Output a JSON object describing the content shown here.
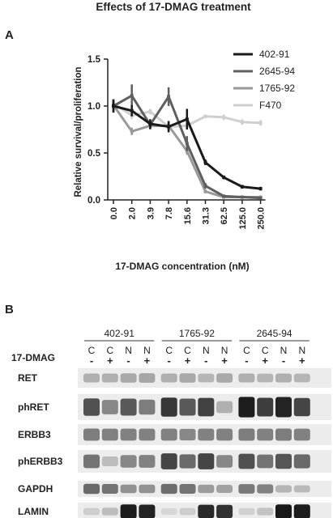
{
  "figure": {
    "title": "Effects of 17-DMAG treatment",
    "panel_a_label": "A",
    "panel_b_label": "B"
  },
  "chart_data": {
    "type": "line",
    "title": "Effects of 17-DMAG treatment",
    "xlabel": "17-DMAG concentration  (nM)",
    "ylabel": "Relative survival/proliferation",
    "categories": [
      "0.0",
      "2.0",
      "3.9",
      "7.8",
      "15.6",
      "31.3",
      "62.5",
      "125.0",
      "250.0"
    ],
    "yticks": [
      "0.0",
      "0.5",
      "1.0",
      "1.5"
    ],
    "ylim": [
      0,
      1.5
    ],
    "legend_position": "top-right",
    "series": [
      {
        "name": "402-91",
        "color": "#1a1a1a",
        "values": [
          1.0,
          0.95,
          0.81,
          0.78,
          0.86,
          0.4,
          0.24,
          0.14,
          0.12
        ],
        "errors": [
          0.07,
          0.06,
          0.05,
          0.06,
          0.11,
          0.03,
          0.02,
          0.02,
          0.02
        ]
      },
      {
        "name": "2645-94",
        "color": "#5f5f5f",
        "values": [
          1.0,
          1.11,
          0.8,
          1.1,
          0.6,
          0.15,
          0.04,
          0.03,
          0.02
        ],
        "errors": [
          0.07,
          0.12,
          0.05,
          0.1,
          0.08,
          0.03,
          0.01,
          0.01,
          0.01
        ]
      },
      {
        "name": "1765-92",
        "color": "#999999",
        "values": [
          1.01,
          0.73,
          0.79,
          0.79,
          0.52,
          0.09,
          0.03,
          0.03,
          0.03
        ],
        "errors": [
          0.05,
          0.04,
          0.04,
          0.05,
          0.04,
          0.02,
          0.01,
          0.01,
          0.01
        ]
      },
      {
        "name": "F470",
        "color": "#cfcfcf",
        "values": [
          1.03,
          0.9,
          0.94,
          0.78,
          0.79,
          0.89,
          0.88,
          0.83,
          0.82
        ],
        "errors": [
          0.05,
          0.04,
          0.03,
          0.04,
          0.04,
          0.02,
          0.03,
          0.03,
          0.03
        ]
      }
    ]
  },
  "blot": {
    "groups": [
      "402-91",
      "1765-92",
      "2645-94"
    ],
    "lane_letters": [
      "C",
      "C",
      "N",
      "N",
      "C",
      "C",
      "N",
      "N",
      "C",
      "C",
      "N",
      "N"
    ],
    "treatment_label": "17-DMAG",
    "treatment_signs": [
      "-",
      "+",
      "-",
      "+",
      "-",
      "+",
      "-",
      "+",
      "-",
      "+",
      "-",
      "+"
    ],
    "rows": [
      {
        "label": "RET",
        "intensities": [
          0.25,
          0.25,
          0.28,
          0.3,
          0.25,
          0.28,
          0.22,
          0.28,
          0.25,
          0.22,
          0.25,
          0.22
        ]
      },
      {
        "label": "phRET",
        "intensities": [
          0.72,
          0.45,
          0.68,
          0.5,
          0.85,
          0.68,
          0.8,
          0.25,
          0.98,
          0.82,
          0.95,
          0.78
        ]
      },
      {
        "label": "ERBB3",
        "intensities": [
          0.5,
          0.48,
          0.48,
          0.48,
          0.48,
          0.45,
          0.48,
          0.48,
          0.5,
          0.48,
          0.5,
          0.48
        ]
      },
      {
        "label": "phERBB3",
        "intensities": [
          0.55,
          0.18,
          0.45,
          0.48,
          0.78,
          0.6,
          0.78,
          0.45,
          0.72,
          0.55,
          0.7,
          0.6
        ]
      },
      {
        "label": "GAPDH",
        "intensities": [
          0.6,
          0.55,
          0.4,
          0.4,
          0.58,
          0.55,
          0.35,
          0.32,
          0.52,
          0.48,
          0.22,
          0.2
        ]
      },
      {
        "label": "LAMIN",
        "intensities": [
          0.1,
          0.18,
          0.98,
          0.95,
          0.05,
          0.1,
          0.92,
          0.88,
          0.08,
          0.15,
          1.0,
          0.98
        ]
      }
    ]
  }
}
